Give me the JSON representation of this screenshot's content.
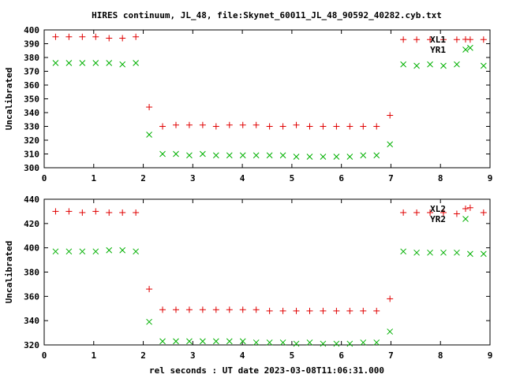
{
  "title": "HIRES continuum, JL_48, file:Skynet_60011_JL_48_90592_40282.cyb.txt",
  "xlabel": "rel seconds : UT date 2023-03-08T11:06:31.000",
  "colors": {
    "series1": "#e00000",
    "series2": "#00b000"
  },
  "chart_data": [
    {
      "type": "scatter",
      "ylabel": "Uncalibrated",
      "xlim": [
        0,
        9
      ],
      "ylim": [
        300,
        400
      ],
      "xticks": [
        0,
        1,
        2,
        3,
        4,
        5,
        6,
        7,
        8,
        9
      ],
      "yticks": [
        300,
        310,
        320,
        330,
        340,
        350,
        360,
        370,
        380,
        390,
        400
      ],
      "legend_position": "top-right",
      "x": [
        0.23,
        0.5,
        0.77,
        1.04,
        1.31,
        1.58,
        1.85,
        2.12,
        2.39,
        2.66,
        2.93,
        3.2,
        3.47,
        3.74,
        4.01,
        4.28,
        4.55,
        4.82,
        5.09,
        5.36,
        5.63,
        5.9,
        6.17,
        6.44,
        6.71,
        6.98,
        7.25,
        7.52,
        7.79,
        8.06,
        8.33,
        8.6,
        8.87
      ],
      "series": [
        {
          "name": "XL1",
          "marker": "plus",
          "values": [
            395,
            395,
            395,
            395,
            394,
            394,
            395,
            344,
            330,
            331,
            331,
            331,
            330,
            331,
            331,
            331,
            330,
            330,
            331,
            330,
            330,
            330,
            330,
            330,
            330,
            338,
            393,
            393,
            393,
            393,
            393,
            393,
            393
          ]
        },
        {
          "name": "YR1",
          "marker": "cross",
          "values": [
            376,
            376,
            376,
            376,
            376,
            375,
            376,
            324,
            310,
            310,
            309,
            310,
            309,
            309,
            309,
            309,
            309,
            309,
            308,
            308,
            308,
            308,
            308,
            309,
            309,
            317,
            375,
            374,
            375,
            374,
            375,
            387,
            374
          ]
        }
      ]
    },
    {
      "type": "scatter",
      "ylabel": "Uncalibrated",
      "xlim": [
        0,
        9
      ],
      "ylim": [
        320,
        440
      ],
      "xticks": [
        0,
        1,
        2,
        3,
        4,
        5,
        6,
        7,
        8,
        9
      ],
      "yticks": [
        320,
        340,
        360,
        380,
        400,
        420,
        440
      ],
      "legend_position": "top-right",
      "x": [
        0.23,
        0.5,
        0.77,
        1.04,
        1.31,
        1.58,
        1.85,
        2.12,
        2.39,
        2.66,
        2.93,
        3.2,
        3.47,
        3.74,
        4.01,
        4.28,
        4.55,
        4.82,
        5.09,
        5.36,
        5.63,
        5.9,
        6.17,
        6.44,
        6.71,
        6.98,
        7.25,
        7.52,
        7.79,
        8.06,
        8.33,
        8.6,
        8.87
      ],
      "series": [
        {
          "name": "XL2",
          "marker": "plus",
          "values": [
            430,
            430,
            429,
            430,
            429,
            429,
            429,
            366,
            349,
            349,
            349,
            349,
            349,
            349,
            349,
            349,
            348,
            348,
            348,
            348,
            348,
            348,
            348,
            348,
            348,
            358,
            429,
            429,
            429,
            429,
            428,
            433,
            429
          ]
        },
        {
          "name": "YR2",
          "marker": "cross",
          "values": [
            397,
            397,
            397,
            397,
            398,
            398,
            397,
            339,
            323,
            323,
            323,
            323,
            323,
            323,
            323,
            322,
            322,
            322,
            321,
            322,
            321,
            321,
            321,
            322,
            322,
            331,
            397,
            396,
            396,
            396,
            396,
            395,
            395
          ]
        }
      ]
    }
  ]
}
